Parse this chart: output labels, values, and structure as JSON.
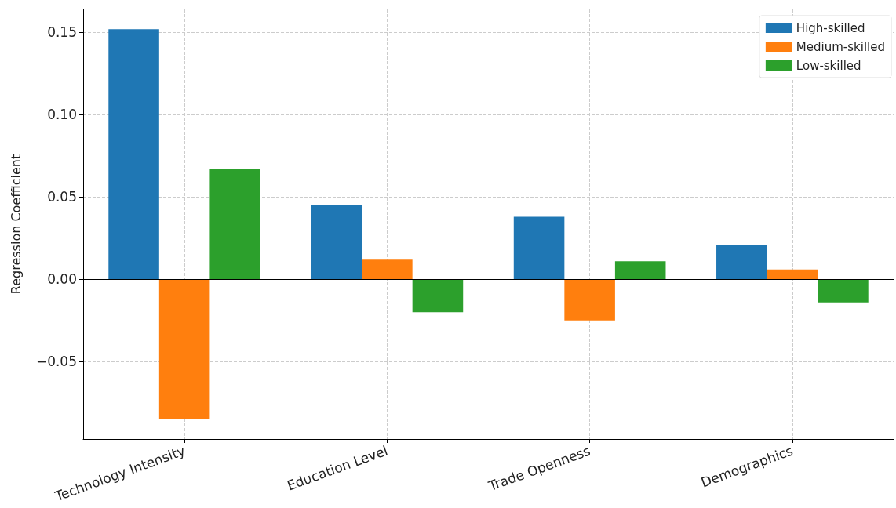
{
  "chart_data": {
    "type": "bar",
    "ylabel": "Regression Coefficient",
    "categories": [
      "Technology Intensity",
      "Education Level",
      "Trade Openness",
      "Demographics"
    ],
    "series": [
      {
        "name": "High-skilled",
        "color": "#1f77b4",
        "values": [
          0.152,
          0.045,
          0.038,
          0.021
        ]
      },
      {
        "name": "Medium-skilled",
        "color": "#ff7f0e",
        "values": [
          -0.085,
          0.012,
          -0.025,
          0.006
        ]
      },
      {
        "name": "Low-skilled",
        "color": "#2ca02c",
        "values": [
          0.067,
          -0.02,
          0.011,
          -0.014
        ]
      }
    ],
    "ylim": [
      -0.097,
      0.164
    ],
    "yticks": [
      {
        "value": -0.05,
        "label": "−0.05"
      },
      {
        "value": 0,
        "label": "0.00"
      },
      {
        "value": 0.05,
        "label": "0.05"
      },
      {
        "value": 0.1,
        "label": "0.10"
      },
      {
        "value": 0.15,
        "label": "0.15"
      }
    ],
    "ref_lines": [
      {
        "axis": "y",
        "value": 0,
        "color": "#000000"
      }
    ],
    "grid": true,
    "legend": "top right"
  }
}
